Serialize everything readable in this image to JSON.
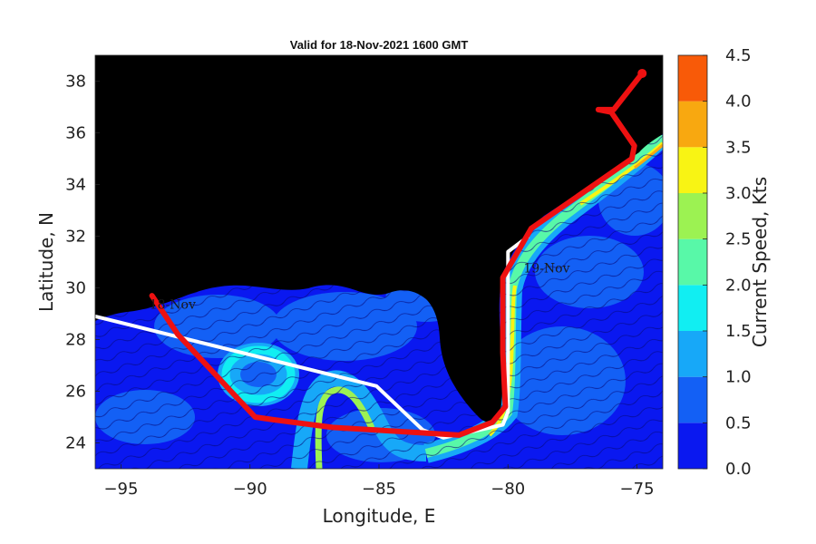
{
  "map": {
    "title": "Valid for 18-Nov-2021 1600 GMT",
    "xlabel": "Longitude, E",
    "ylabel": "Latitude, N",
    "x_ticks": [
      -95,
      -90,
      -85,
      -80,
      -75
    ],
    "y_ticks": [
      24,
      26,
      28,
      30,
      32,
      34,
      36,
      38
    ],
    "xlim": [
      -96,
      -74
    ],
    "ylim": [
      23,
      39
    ],
    "land_color": "#000000",
    "annotations": [
      {
        "text": "18-Nov",
        "lon": -93.9,
        "lat": 29.2
      },
      {
        "text": "19-Nov",
        "lon": -79.4,
        "lat": 30.6
      }
    ],
    "routes": [
      {
        "color": "#ffffff",
        "points": [
          [
            -96,
            28.9
          ],
          [
            -85.1,
            26.2
          ],
          [
            -83.3,
            24.5
          ],
          [
            -82.5,
            24.2
          ],
          [
            -80.2,
            24.7
          ],
          [
            -80.0,
            25.2
          ],
          [
            -80.0,
            31.4
          ],
          [
            -79.2,
            32.0
          ]
        ]
      },
      {
        "color": "#ee1111",
        "points": [
          [
            -93.8,
            29.7
          ],
          [
            -92.8,
            28.2
          ],
          [
            -89.8,
            25.0
          ],
          [
            -89.1,
            24.9
          ],
          [
            -86.8,
            24.6
          ],
          [
            -81.9,
            24.3
          ],
          [
            -80.6,
            24.8
          ],
          [
            -80.1,
            25.4
          ],
          [
            -80.2,
            27.5
          ],
          [
            -80.2,
            30.4
          ],
          [
            -79.1,
            32.3
          ],
          [
            -75.2,
            35.0
          ],
          [
            -75.1,
            35.5
          ],
          [
            -76.0,
            36.8
          ],
          [
            -76.5,
            36.9
          ],
          [
            -75.9,
            36.9
          ],
          [
            -74.8,
            38.3
          ]
        ]
      }
    ]
  },
  "colorbar": {
    "label": "Current Speed, Kts",
    "min": 0,
    "max": 4.5,
    "tick_labels": [
      "0.0",
      "0.5",
      "1.0",
      "1.5",
      "2.0",
      "2.5",
      "3.0",
      "3.5",
      "4.0",
      "4.5"
    ],
    "tick_values": [
      0,
      0.5,
      1.0,
      1.5,
      2.0,
      2.5,
      3.0,
      3.5,
      4.0,
      4.5
    ],
    "bins": [
      {
        "from": 0.0,
        "to": 0.5,
        "color": "#0a18f0"
      },
      {
        "from": 0.5,
        "to": 1.0,
        "color": "#1360f5"
      },
      {
        "from": 1.0,
        "to": 1.5,
        "color": "#17a8f8"
      },
      {
        "from": 1.5,
        "to": 2.0,
        "color": "#11eef2"
      },
      {
        "from": 2.0,
        "to": 2.5,
        "color": "#58f8a8"
      },
      {
        "from": 2.5,
        "to": 3.0,
        "color": "#9cf252"
      },
      {
        "from": 3.0,
        "to": 3.5,
        "color": "#f8f414"
      },
      {
        "from": 3.5,
        "to": 4.0,
        "color": "#f8a810"
      },
      {
        "from": 4.0,
        "to": 4.5,
        "color": "#f85a08"
      }
    ]
  }
}
